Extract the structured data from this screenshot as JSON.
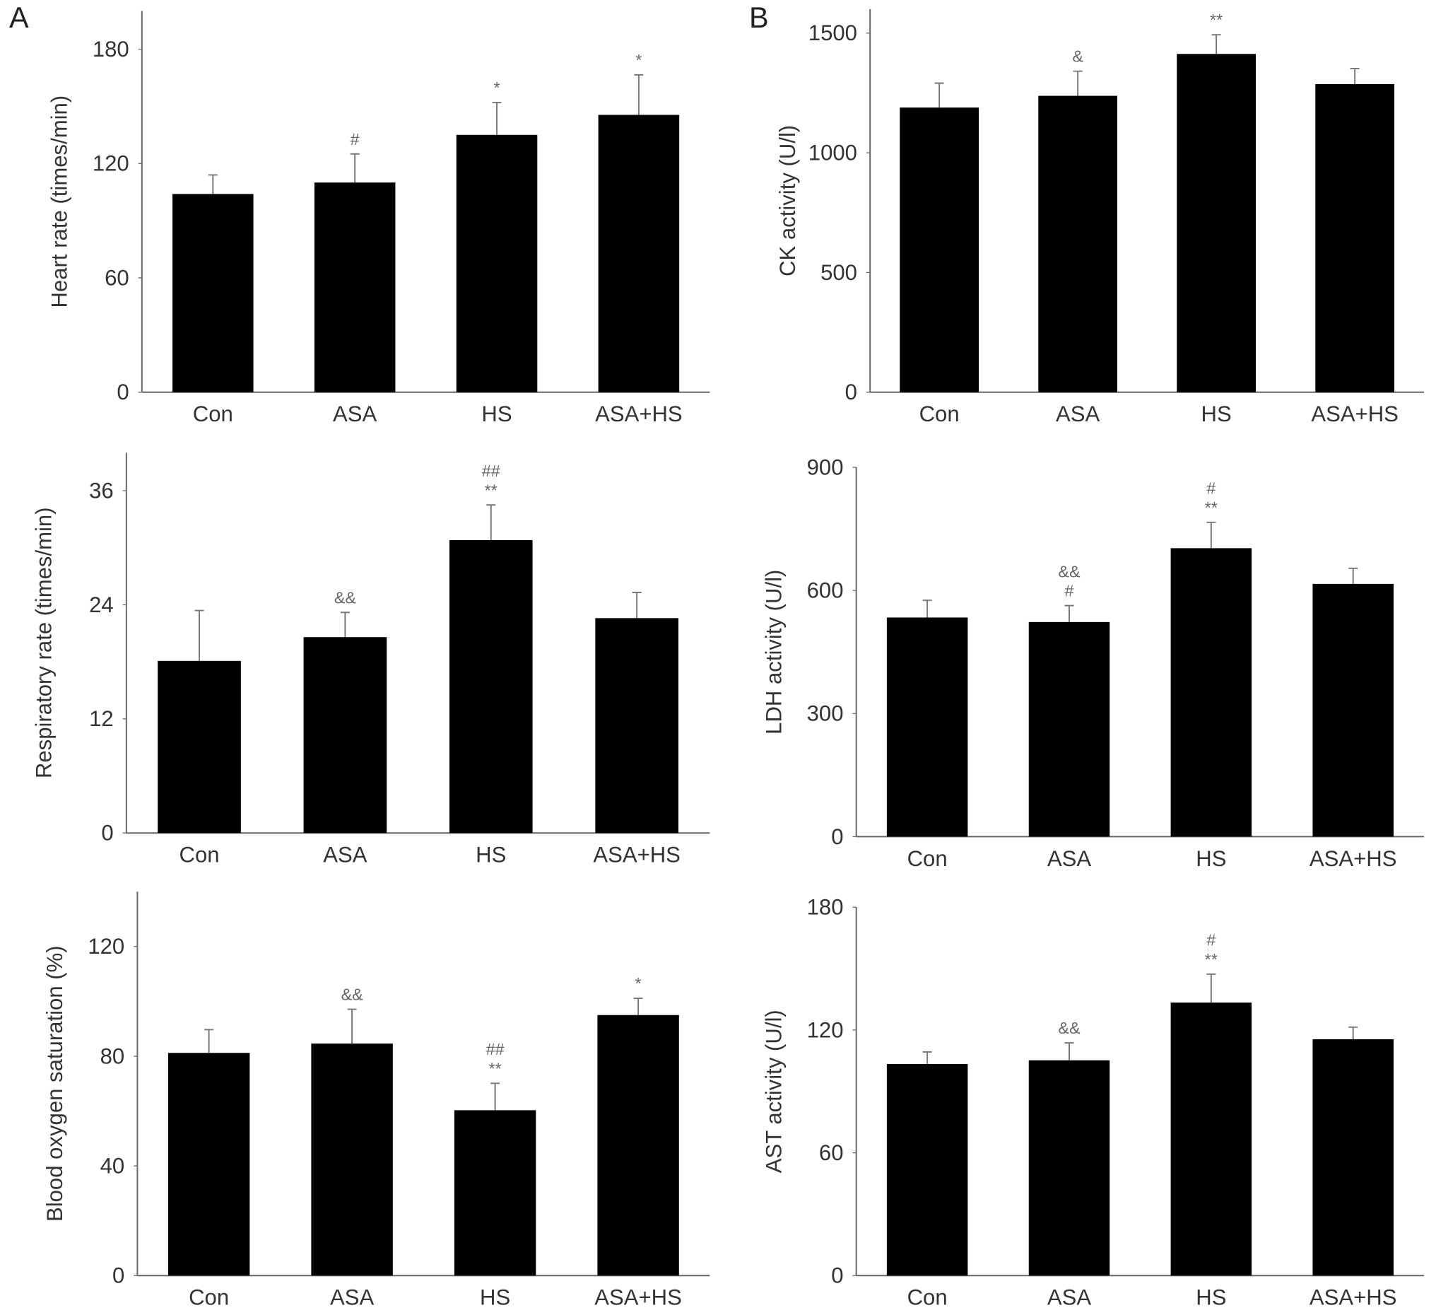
{
  "chart_data": [
    {
      "type": "bar",
      "panel": "A",
      "ylabel": "Heart rate (times/min)",
      "categories": [
        "Con",
        "ASA",
        "HS",
        "ASA+HS"
      ],
      "values": [
        104,
        110,
        135,
        145.5
      ],
      "errors": [
        10,
        15,
        17,
        21
      ],
      "annotations": [
        null,
        [
          "#"
        ],
        [
          "*"
        ],
        [
          "*"
        ]
      ],
      "color": "#000000",
      "ylim": [
        0,
        200
      ],
      "yticks": [
        0,
        60,
        120,
        180
      ]
    },
    {
      "type": "bar",
      "panel": "B",
      "ylabel": "CK activity (U/l)",
      "categories": [
        "Con",
        "ASA",
        "HS",
        "ASA+HS"
      ],
      "values": [
        1189,
        1238,
        1413,
        1287
      ],
      "errors": [
        102,
        103,
        80,
        65
      ],
      "annotations": [
        null,
        [
          "&"
        ],
        [
          "**"
        ],
        null
      ],
      "color": "#000000",
      "ylim": [
        0,
        1600
      ],
      "yticks": [
        0,
        500,
        1000,
        1500
      ]
    },
    {
      "type": "bar",
      "ylabel": "Respiratory rate (times/min)",
      "categories": [
        "Con",
        "ASA",
        "HS",
        "ASA+HS"
      ],
      "values": [
        18.1,
        20.6,
        30.8,
        22.6
      ],
      "errors": [
        5.3,
        2.6,
        3.7,
        2.7
      ],
      "annotations": [
        null,
        [
          "&&"
        ],
        [
          "##",
          "**"
        ],
        null
      ],
      "color": "#000000",
      "ylim": [
        0,
        40
      ],
      "yticks": [
        0,
        12,
        24,
        36
      ]
    },
    {
      "type": "bar",
      "ylabel": "LDH activity (U/l)",
      "categories": [
        "Con",
        "ASA",
        "HS",
        "ASA+HS"
      ],
      "values": [
        534,
        523,
        703,
        616
      ],
      "errors": [
        42,
        40,
        63,
        38
      ],
      "annotations": [
        null,
        [
          "&&",
          "#"
        ],
        [
          "#",
          "**"
        ],
        null
      ],
      "color": "#000000",
      "ylim": [
        0,
        900
      ],
      "yticks": [
        0,
        300,
        600,
        900
      ]
    },
    {
      "type": "bar",
      "ylabel": "Blood oxygen saturation (%)",
      "categories": [
        "Con",
        "ASA",
        "HS",
        "ASA+HS"
      ],
      "values": [
        81.2,
        84.6,
        60.3,
        95
      ],
      "errors": [
        8.5,
        12.5,
        9.8,
        6.1
      ],
      "annotations": [
        null,
        [
          "&&"
        ],
        [
          "##",
          "**"
        ],
        [
          "*"
        ]
      ],
      "color": "#000000",
      "ylim": [
        0,
        140
      ],
      "yticks": [
        0,
        40,
        80,
        120
      ]
    },
    {
      "type": "bar",
      "ylabel": "AST activity (U/l)",
      "categories": [
        "Con",
        "ASA",
        "HS",
        "ASA+HS"
      ],
      "values": [
        103.4,
        105.2,
        133.4,
        115.5
      ],
      "errors": [
        5.9,
        8.5,
        13.9,
        5.9
      ],
      "annotations": [
        null,
        [
          "&&"
        ],
        [
          "#",
          "**"
        ],
        null
      ],
      "color": "#000000",
      "ylim": [
        0,
        180
      ],
      "yticks": [
        0,
        60,
        120,
        180
      ]
    }
  ]
}
